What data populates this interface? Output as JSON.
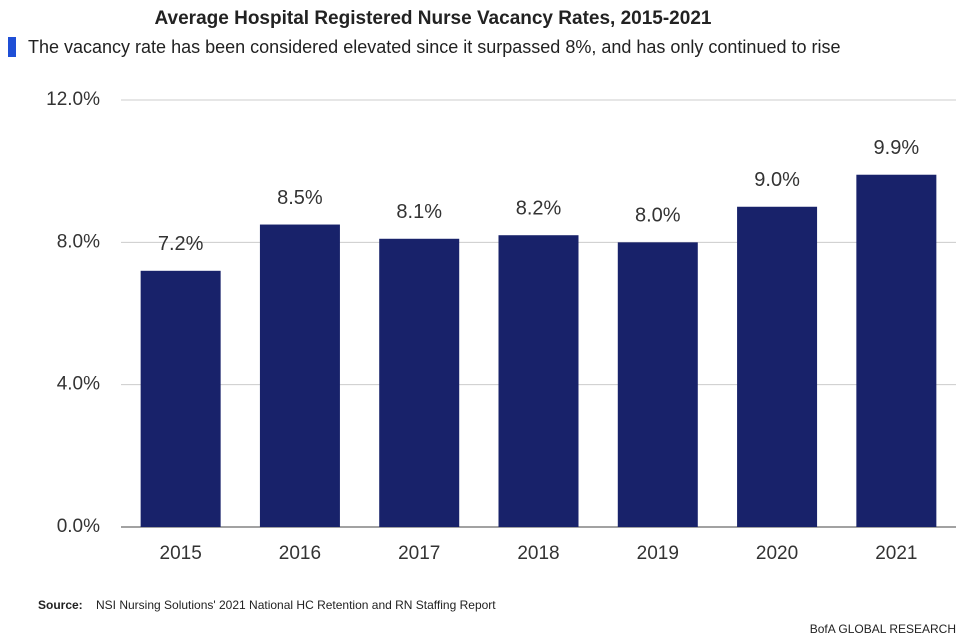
{
  "chart_data": {
    "type": "bar",
    "title": "Average Hospital Registered Nurse Vacancy Rates, 2015-2021",
    "subtitle": "The vacancy rate has been considered elevated since it surpassed 8%, and has only continued to rise",
    "categories": [
      "2015",
      "2016",
      "2017",
      "2018",
      "2019",
      "2020",
      "2021"
    ],
    "values": [
      7.2,
      8.5,
      8.1,
      8.2,
      8.0,
      9.0,
      9.9
    ],
    "value_labels": [
      "7.2%",
      "8.5%",
      "8.1%",
      "8.2%",
      "8.0%",
      "9.0%",
      "9.9%"
    ],
    "color": "#18226a",
    "ylim": [
      0,
      12
    ],
    "yticks": [
      {
        "value": 0,
        "label": "0.0%"
      },
      {
        "value": 4,
        "label": "4.0%"
      },
      {
        "value": 8,
        "label": "8.0%"
      },
      {
        "value": 12,
        "label": "12.0%"
      }
    ],
    "grid": true,
    "source_label": "Source:",
    "source": "NSI Nursing Solutions' 2021 National HC Retention and RN Staffing Report",
    "footer": "BofA GLOBAL RESEARCH"
  }
}
